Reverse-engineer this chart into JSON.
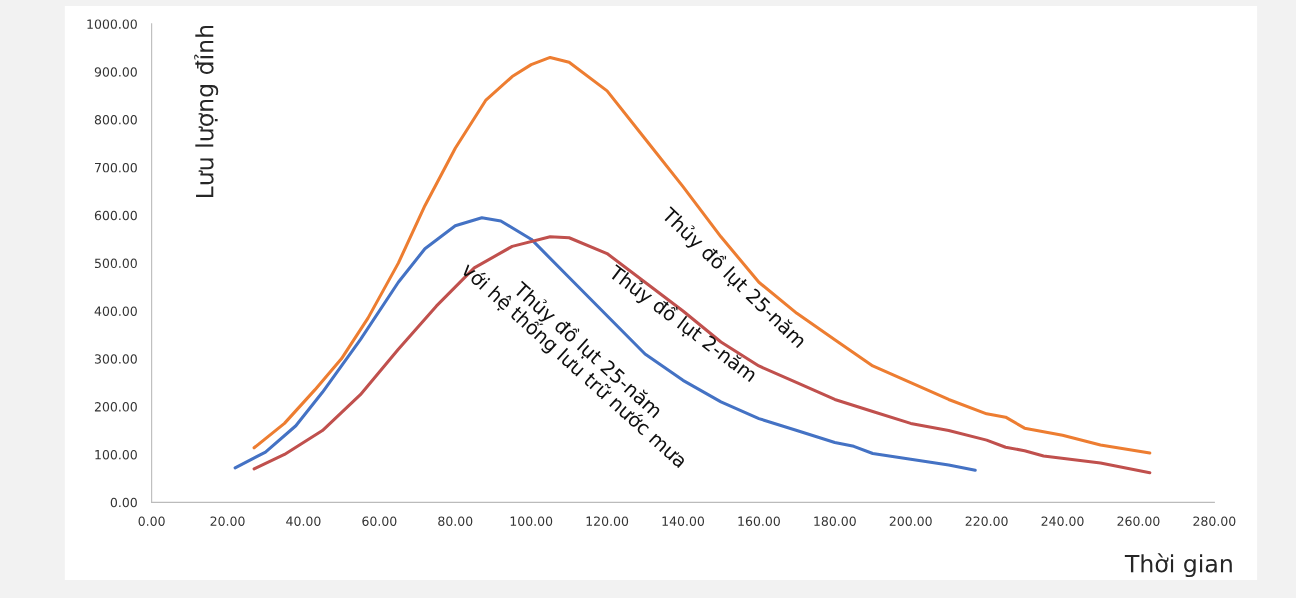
{
  "chart_data": {
    "type": "line",
    "xlabel": "Thời gian",
    "ylabel": "Lưu lượng đỉnh",
    "xlim": [
      0,
      280
    ],
    "ylim": [
      0,
      1000
    ],
    "xticks": [
      {
        "value": 0,
        "label": "0.00"
      },
      {
        "value": 20,
        "label": "20.00"
      },
      {
        "value": 40,
        "label": "40.00"
      },
      {
        "value": 60,
        "label": "60.00"
      },
      {
        "value": 80,
        "label": "80.00"
      },
      {
        "value": 100,
        "label": "100.00"
      },
      {
        "value": 120,
        "label": "120.00"
      },
      {
        "value": 140,
        "label": "140.00"
      },
      {
        "value": 160,
        "label": "160.00"
      },
      {
        "value": 180,
        "label": "180.00"
      },
      {
        "value": 200,
        "label": "200.00"
      },
      {
        "value": 220,
        "label": "220.00"
      },
      {
        "value": 240,
        "label": "240.00"
      },
      {
        "value": 260,
        "label": "260.00"
      },
      {
        "value": 280,
        "label": "280.00"
      }
    ],
    "yticks": [
      {
        "value": 0,
        "label": "0.00"
      },
      {
        "value": 100,
        "label": "100.00"
      },
      {
        "value": 200,
        "label": "200.00"
      },
      {
        "value": 300,
        "label": "300.00"
      },
      {
        "value": 400,
        "label": "400.00"
      },
      {
        "value": 500,
        "label": "500.00"
      },
      {
        "value": 600,
        "label": "600.00"
      },
      {
        "value": 700,
        "label": "700.00"
      },
      {
        "value": 800,
        "label": "800.00"
      },
      {
        "value": 900,
        "label": "900.00"
      },
      {
        "value": 1000,
        "label": "1000.00"
      }
    ],
    "grid": false,
    "legend": false,
    "marker": "none",
    "line_style": "solid",
    "series": [
      {
        "name": "Thủy đồ lụt 25-năm",
        "color": "#ed7d31",
        "x": [
          27,
          35,
          43,
          50,
          57,
          65,
          72,
          80,
          88,
          95,
          100,
          105,
          110,
          120,
          130,
          140,
          150,
          160,
          170,
          180,
          190,
          200,
          210,
          220,
          225,
          230,
          240,
          250,
          263
        ],
        "values": [
          114,
          165,
          235,
          300,
          385,
          500,
          620,
          740,
          840,
          890,
          915,
          930,
          920,
          860,
          760,
          660,
          555,
          460,
          395,
          340,
          285,
          250,
          215,
          185,
          178,
          155,
          140,
          120,
          103
        ]
      },
      {
        "name": "Thủy đồ lụt 25-năm\nvới hệ thống lưu trữ nước mưa",
        "color": "#4472c4",
        "x": [
          22,
          30,
          38,
          45,
          55,
          65,
          72,
          80,
          87,
          92,
          100,
          110,
          120,
          130,
          140,
          150,
          160,
          170,
          180,
          185,
          190,
          200,
          210,
          217
        ],
        "values": [
          72,
          105,
          160,
          230,
          340,
          460,
          530,
          578,
          595,
          588,
          550,
          470,
          390,
          310,
          255,
          210,
          175,
          150,
          125,
          117,
          102,
          90,
          78,
          67
        ]
      },
      {
        "name": "Thủy đồ lụt 2-năm",
        "color": "#c0504d",
        "x": [
          27,
          35,
          45,
          55,
          65,
          75,
          85,
          95,
          105,
          110,
          120,
          130,
          140,
          150,
          160,
          170,
          180,
          190,
          200,
          210,
          220,
          225,
          230,
          235,
          250,
          263
        ],
        "values": [
          70,
          100,
          150,
          225,
          320,
          410,
          490,
          535,
          555,
          553,
          520,
          460,
          400,
          335,
          285,
          250,
          215,
          190,
          165,
          150,
          130,
          115,
          108,
          97,
          82,
          62
        ]
      }
    ]
  }
}
